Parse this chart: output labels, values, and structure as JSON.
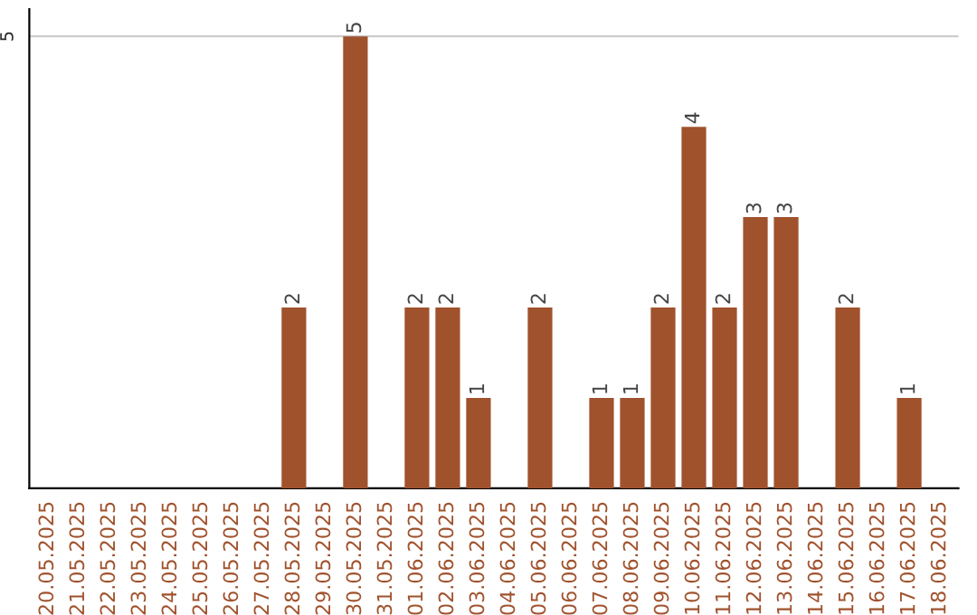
{
  "chart_data": {
    "type": "bar",
    "categories": [
      "20.05.2025",
      "21.05.2025",
      "22.05.2025",
      "23.05.2025",
      "24.05.2025",
      "25.05.2025",
      "26.05.2025",
      "27.05.2025",
      "28.05.2025",
      "29.05.2025",
      "30.05.2025",
      "31.05.2025",
      "01.06.2025",
      "02.06.2025",
      "03.06.2025",
      "04.06.2025",
      "05.06.2025",
      "06.06.2025",
      "07.06.2025",
      "08.06.2025",
      "09.06.2025",
      "10.06.2025",
      "11.06.2025",
      "12.06.2025",
      "13.06.2025",
      "14.06.2025",
      "15.06.2025",
      "16.06.2025",
      "17.06.2025",
      "18.06.2025"
    ],
    "values": [
      0,
      0,
      0,
      0,
      0,
      0,
      0,
      0,
      2,
      0,
      5,
      0,
      2,
      2,
      1,
      0,
      2,
      0,
      1,
      1,
      2,
      4,
      2,
      3,
      3,
      0,
      2,
      0,
      1,
      0
    ],
    "value_labels": [
      null,
      null,
      null,
      null,
      null,
      null,
      null,
      null,
      "2",
      null,
      "5",
      null,
      "2",
      "2",
      "1",
      null,
      "2",
      null,
      "1",
      "1",
      "2",
      "4",
      "2",
      "3",
      "3",
      null,
      "2",
      null,
      "1",
      null
    ],
    "color": "#a0522d",
    "ylim": [
      0,
      5.3
    ],
    "yticks": [
      5
    ],
    "grid": "y",
    "legend": false
  }
}
